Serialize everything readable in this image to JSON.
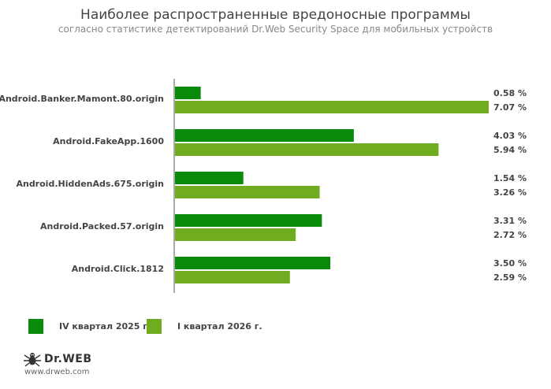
{
  "title": "Наиболее распространенные вредоносные программы",
  "subtitle": "согласно статистике детектирований Dr.Web Security Space для мобильных устройств",
  "colors": {
    "series1": "#0a8a0a",
    "series2": "#6fac1f",
    "axis": "#555555",
    "label": "#444444"
  },
  "chart_data": {
    "type": "bar",
    "orientation": "horizontal",
    "categories": [
      "Android.Banker.Mamont.80.origin",
      "Android.FakeApp.1600",
      "Android.HiddenAds.675.origin",
      "Android.Packed.57.origin",
      "Android.Click.1812"
    ],
    "series": [
      {
        "name": "IV квартал 2025 г.",
        "values": [
          0.58,
          4.03,
          1.54,
          3.31,
          3.5
        ],
        "labels": [
          "0.58 %",
          "4.03 %",
          "1.54 %",
          "3.31 %",
          "3.50 %"
        ]
      },
      {
        "name": "I квартал 2026 г.",
        "values": [
          7.07,
          5.94,
          3.26,
          2.72,
          2.59
        ],
        "labels": [
          "7.07 %",
          "5.94 %",
          "3.26 %",
          "2.72 %",
          "2.59 %"
        ]
      }
    ],
    "xlim": [
      0,
      7.07
    ],
    "grid": false,
    "legend_position": "bottom-left"
  },
  "logo": {
    "brand": "Dr.WEB",
    "url": "www.drweb.com",
    "icon": "spider-icon"
  }
}
